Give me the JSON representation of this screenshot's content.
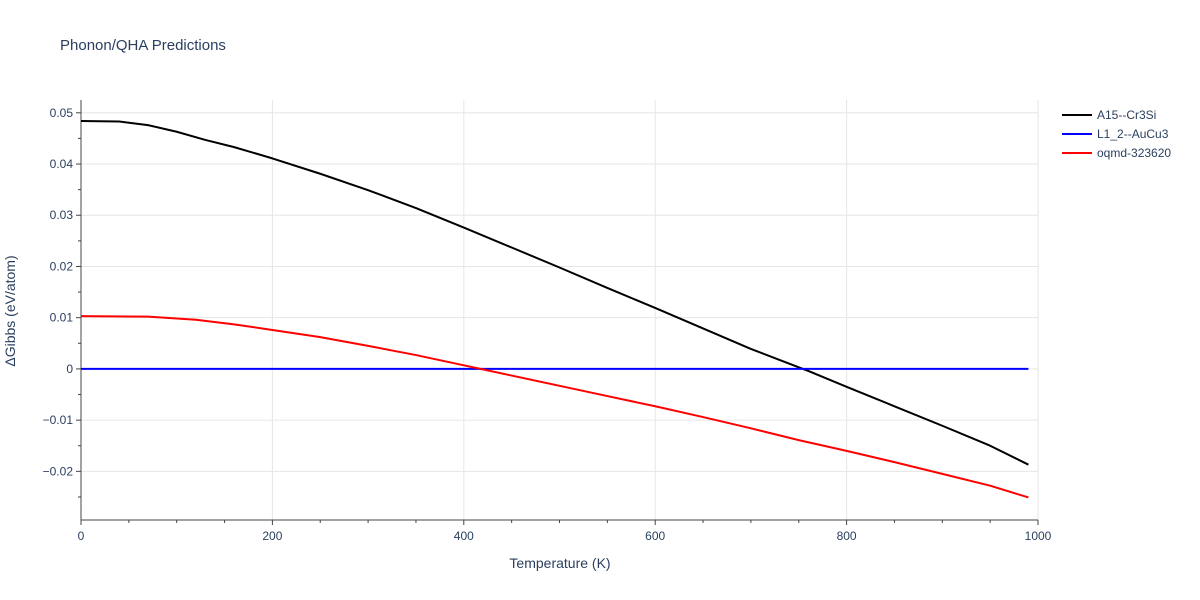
{
  "chart_data": {
    "type": "line",
    "title": "Phonon/QHA Predictions",
    "xlabel": "Temperature (K)",
    "ylabel": "ΔGibbs (eV/atom)",
    "xlim": [
      0,
      1000
    ],
    "ylim": [
      -0.0295,
      0.0525
    ],
    "x_ticks": [
      0,
      200,
      400,
      600,
      800,
      1000
    ],
    "x_tick_labels": [
      "0",
      "200",
      "400",
      "600",
      "800",
      "1000"
    ],
    "y_ticks": [
      -0.02,
      -0.01,
      0,
      0.01,
      0.02,
      0.03,
      0.04,
      0.05
    ],
    "y_tick_labels": [
      "−0.02",
      "−0.01",
      "0",
      "0.01",
      "0.02",
      "0.03",
      "0.04",
      "0.05"
    ],
    "grid": true,
    "legend_position": "top-right",
    "series": [
      {
        "name": "A15--Cr3Si",
        "color": "#000000",
        "x": [
          0,
          40,
          70,
          100,
          130,
          160,
          200,
          250,
          300,
          350,
          400,
          450,
          500,
          550,
          600,
          650,
          700,
          750,
          760,
          800,
          850,
          900,
          950,
          990
        ],
        "y": [
          0.0484,
          0.0483,
          0.0476,
          0.0463,
          0.0447,
          0.0433,
          0.0411,
          0.0381,
          0.0349,
          0.0314,
          0.0276,
          0.0237,
          0.0198,
          0.0158,
          0.0119,
          0.0079,
          0.0039,
          0.0003,
          -0.0004,
          -0.0035,
          -0.0073,
          -0.0111,
          -0.015,
          -0.0187
        ]
      },
      {
        "name": "L1_2--AuCu3",
        "color": "#0000ff",
        "x": [
          0,
          990
        ],
        "y": [
          0,
          0
        ]
      },
      {
        "name": "oqmd-323620",
        "color": "#ff0000",
        "x": [
          0,
          70,
          120,
          160,
          200,
          250,
          300,
          350,
          400,
          420,
          450,
          500,
          550,
          600,
          650,
          700,
          750,
          800,
          850,
          900,
          950,
          990
        ],
        "y": [
          0.0103,
          0.0102,
          0.0096,
          0.0087,
          0.0076,
          0.0062,
          0.0045,
          0.0027,
          0.0007,
          -0.0001,
          -0.0013,
          -0.0033,
          -0.0053,
          -0.0073,
          -0.0094,
          -0.0116,
          -0.0139,
          -0.016,
          -0.0182,
          -0.0205,
          -0.0228,
          -0.0251
        ]
      }
    ]
  }
}
